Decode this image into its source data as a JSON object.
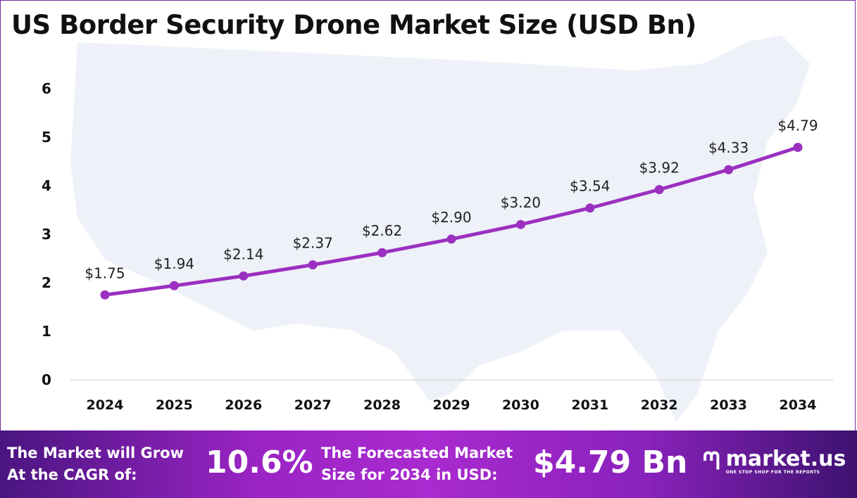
{
  "chart_data": {
    "type": "line",
    "title": "US Border Security Drone Market Size (USD Bn)",
    "categories": [
      "2024",
      "2025",
      "2026",
      "2027",
      "2028",
      "2029",
      "2030",
      "2031",
      "2032",
      "2033",
      "2034"
    ],
    "values": [
      1.75,
      1.94,
      2.14,
      2.37,
      2.62,
      2.9,
      3.2,
      3.54,
      3.92,
      4.33,
      4.79
    ],
    "data_labels": [
      "$1.75",
      "$1.94",
      "$2.14",
      "$2.37",
      "$2.62",
      "$2.90",
      "$3.20",
      "$3.54",
      "$3.92",
      "$4.33",
      "$4.79"
    ],
    "yticks": [
      "0",
      "1",
      "2",
      "3",
      "4",
      "5",
      "6"
    ],
    "ylim": [
      0,
      6
    ],
    "grid": false,
    "line_color": "#9b30c0"
  },
  "banner": {
    "cagr_label_1": "The Market will Grow",
    "cagr_label_2": "At the CAGR of:",
    "cagr_value": "10.6%",
    "forecast_label_1": "The Forecasted Market",
    "forecast_label_2": "Size for 2034 in USD:",
    "forecast_value": "$4.79 Bn",
    "logo_text": "market.us",
    "logo_tagline": "ONE STOP SHOP FOR THE REPORTS"
  }
}
